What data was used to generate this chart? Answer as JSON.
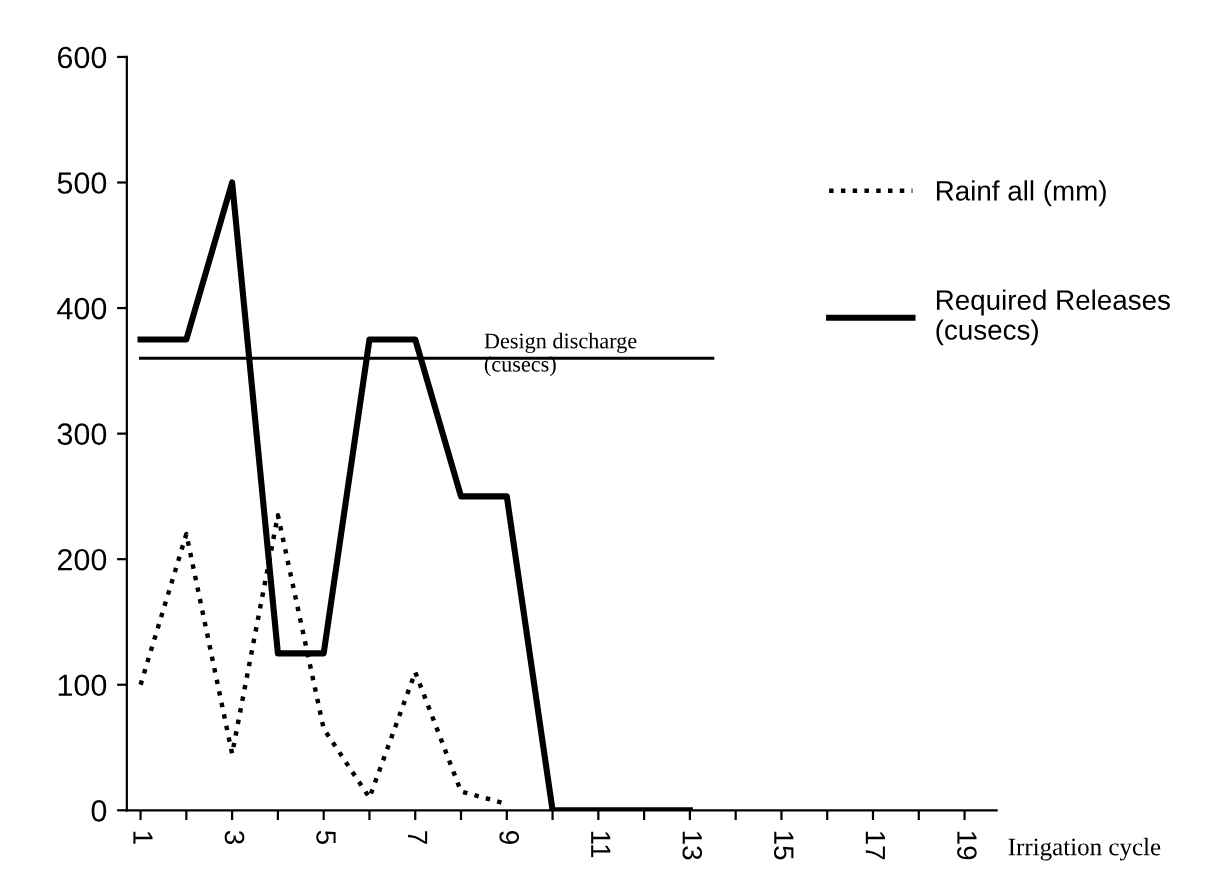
{
  "chart_data": {
    "type": "line",
    "xlabel": "Irrigation cycle",
    "categories": [
      "1",
      null,
      "3",
      null,
      "5",
      null,
      "7",
      null,
      "9",
      null,
      "11",
      null,
      "13",
      null,
      "15",
      null,
      "17",
      null,
      "19"
    ],
    "series": [
      {
        "name": "Rainf all (mm)",
        "color": "#000000",
        "line_style": "dotted",
        "values": [
          100,
          220,
          45,
          235,
          65,
          10,
          110,
          15,
          5,
          null,
          null,
          null,
          null,
          null,
          null,
          null,
          null,
          null,
          null
        ]
      },
      {
        "name": "Required Releases\n(cusecs)",
        "color": "#000000",
        "line_style": "solid",
        "values": [
          375,
          375,
          500,
          125,
          125,
          375,
          375,
          250,
          250,
          0,
          0,
          0,
          0,
          null,
          null,
          null,
          null,
          null,
          null
        ]
      }
    ],
    "ref_lines": [
      {
        "axis": "y",
        "value": 360,
        "label": "Design discharge\n(cusecs)",
        "color": "#000000",
        "line_style": "solid"
      }
    ],
    "ylim": [
      0,
      600
    ],
    "yticks": [
      0,
      100,
      200,
      300,
      400,
      500,
      600
    ],
    "grid": false,
    "legend": "right",
    "marker": "none"
  }
}
